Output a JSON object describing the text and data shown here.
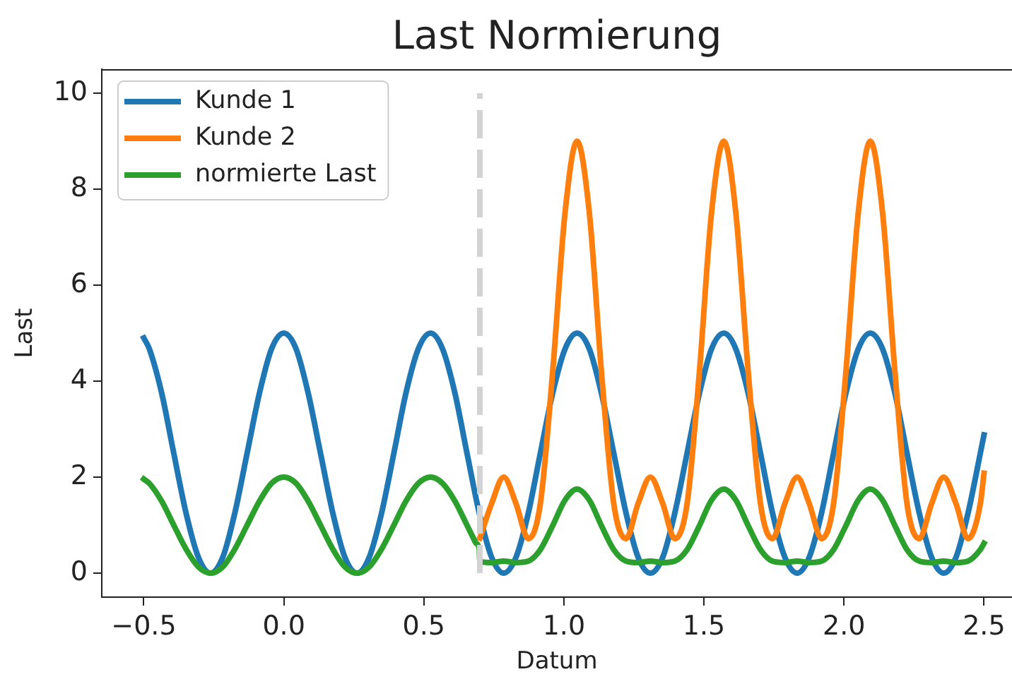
{
  "chart_data": {
    "type": "line",
    "title": "Last Normierung",
    "xlabel": "Datum",
    "ylabel": "Last",
    "xlim": [
      -0.65,
      2.6
    ],
    "ylim": [
      -0.5,
      10.5
    ],
    "xticks": [
      {
        "value": -0.5,
        "label": "−0.5"
      },
      {
        "value": 0,
        "label": "0.0"
      },
      0.5,
      {
        "value": 1,
        "label": "1.0"
      },
      1.5,
      {
        "value": 2,
        "label": "2.0"
      },
      2.5
    ],
    "yticks": [
      0,
      2,
      4,
      6,
      8,
      10
    ],
    "legend": "top left",
    "series": [
      {
        "name": "Kunde 1",
        "color": "#1f77b4",
        "x": [
          -0.5,
          -0.48,
          -0.436,
          -0.393,
          -0.349,
          -0.305,
          -0.262,
          -0.218,
          -0.175,
          -0.131,
          -0.087,
          -0.044,
          0,
          0.044,
          0.087,
          0.131,
          0.175,
          0.218,
          0.262,
          0.305,
          0.349,
          0.393,
          0.436,
          0.48,
          0.524,
          0.567,
          0.611,
          0.654,
          0.698,
          0.742,
          0.785,
          0.829,
          0.873,
          0.916,
          0.96,
          1.004,
          1.047,
          1.091,
          1.134,
          1.178,
          1.222,
          1.265,
          1.309,
          1.353,
          1.396,
          1.44,
          1.484,
          1.527,
          1.571,
          1.614,
          1.658,
          1.702,
          1.745,
          1.789,
          1.833,
          1.876,
          1.92,
          1.963,
          2.007,
          2.051,
          2.094,
          2.138,
          2.182,
          2.225,
          2.269,
          2.313,
          2.356,
          2.4,
          2.443,
          2.487,
          2.5
        ],
        "values": [
          4.9,
          4.67,
          3.75,
          2.5,
          1.25,
          0.33,
          0,
          0.33,
          1.25,
          2.5,
          3.75,
          4.67,
          5,
          4.67,
          3.75,
          2.5,
          1.25,
          0.33,
          0,
          0.33,
          1.25,
          2.5,
          3.75,
          4.67,
          5,
          4.67,
          3.75,
          2.5,
          1.25,
          0.33,
          0,
          0.33,
          1.25,
          2.5,
          3.75,
          4.67,
          5,
          4.67,
          3.75,
          2.5,
          1.25,
          0.33,
          0,
          0.33,
          1.25,
          2.5,
          3.75,
          4.67,
          5,
          4.67,
          3.75,
          2.5,
          1.25,
          0.33,
          0,
          0.33,
          1.25,
          2.5,
          3.75,
          4.67,
          5,
          4.67,
          3.75,
          2.5,
          1.25,
          0.33,
          0,
          0.33,
          1.25,
          2.5,
          2.88
        ]
      },
      {
        "name": "Kunde 2",
        "color": "#ff7f0e",
        "x": [
          0.7,
          0.742,
          0.785,
          0.829,
          0.873,
          0.916,
          0.96,
          1.004,
          1.047,
          1.091,
          1.134,
          1.178,
          1.222,
          1.265,
          1.309,
          1.353,
          1.396,
          1.44,
          1.484,
          1.527,
          1.571,
          1.614,
          1.658,
          1.702,
          1.745,
          1.789,
          1.833,
          1.876,
          1.92,
          1.963,
          2.007,
          2.051,
          2.094,
          2.138,
          2.182,
          2.225,
          2.269,
          2.313,
          2.356,
          2.4,
          2.443,
          2.487,
          2.5
        ],
        "values": [
          0.73,
          1.45,
          2.0,
          1.45,
          0.72,
          1.45,
          4.2,
          7.5,
          9.0,
          7.5,
          4.2,
          1.45,
          0.72,
          1.45,
          2.0,
          1.45,
          0.72,
          1.45,
          4.2,
          7.5,
          9.0,
          7.5,
          4.2,
          1.45,
          0.72,
          1.45,
          2.0,
          1.45,
          0.72,
          1.45,
          4.2,
          7.5,
          9.0,
          7.5,
          4.2,
          1.45,
          0.72,
          1.45,
          2.0,
          1.45,
          0.72,
          1.45,
          2.08
        ]
      },
      {
        "name": "normierte Last",
        "color": "#2ca02c",
        "x": [
          -0.5,
          -0.48,
          -0.436,
          -0.393,
          -0.349,
          -0.305,
          -0.262,
          -0.218,
          -0.175,
          -0.131,
          -0.087,
          -0.044,
          0,
          0.044,
          0.087,
          0.131,
          0.175,
          0.218,
          0.262,
          0.305,
          0.349,
          0.393,
          0.436,
          0.48,
          0.524,
          0.567,
          0.611,
          0.654,
          0.676,
          0.687,
          0.698,
          0.7,
          0.742,
          0.785,
          0.829,
          0.873,
          0.916,
          0.96,
          1.004,
          1.047,
          1.091,
          1.134,
          1.178,
          1.222,
          1.265,
          1.309,
          1.353,
          1.396,
          1.44,
          1.484,
          1.527,
          1.571,
          1.614,
          1.658,
          1.702,
          1.745,
          1.789,
          1.833,
          1.876,
          1.92,
          1.963,
          2.007,
          2.051,
          2.094,
          2.138,
          2.182,
          2.225,
          2.269,
          2.313,
          2.356,
          2.4,
          2.443,
          2.487,
          2.5
        ],
        "values": [
          1.96,
          1.87,
          1.5,
          1.0,
          0.5,
          0.13,
          0,
          0.13,
          0.5,
          1.0,
          1.5,
          1.87,
          2.0,
          1.87,
          1.5,
          1.0,
          0.5,
          0.13,
          0,
          0.13,
          0.5,
          1.0,
          1.5,
          1.87,
          2.0,
          1.87,
          1.5,
          1.0,
          0.74,
          0.62,
          0.5,
          0.24,
          0.22,
          0.25,
          0.22,
          0.25,
          0.49,
          0.99,
          1.52,
          1.75,
          1.52,
          0.99,
          0.49,
          0.25,
          0.22,
          0.25,
          0.22,
          0.25,
          0.49,
          0.99,
          1.52,
          1.75,
          1.52,
          0.99,
          0.49,
          0.25,
          0.22,
          0.25,
          0.22,
          0.25,
          0.49,
          0.99,
          1.52,
          1.75,
          1.52,
          0.99,
          0.49,
          0.25,
          0.22,
          0.25,
          0.22,
          0.25,
          0.49,
          0.62
        ]
      },
      {
        "color": "#d3d3d3",
        "line_style": "dashed",
        "x": [
          0.7,
          0.7
        ],
        "values": [
          0,
          10
        ]
      }
    ]
  }
}
